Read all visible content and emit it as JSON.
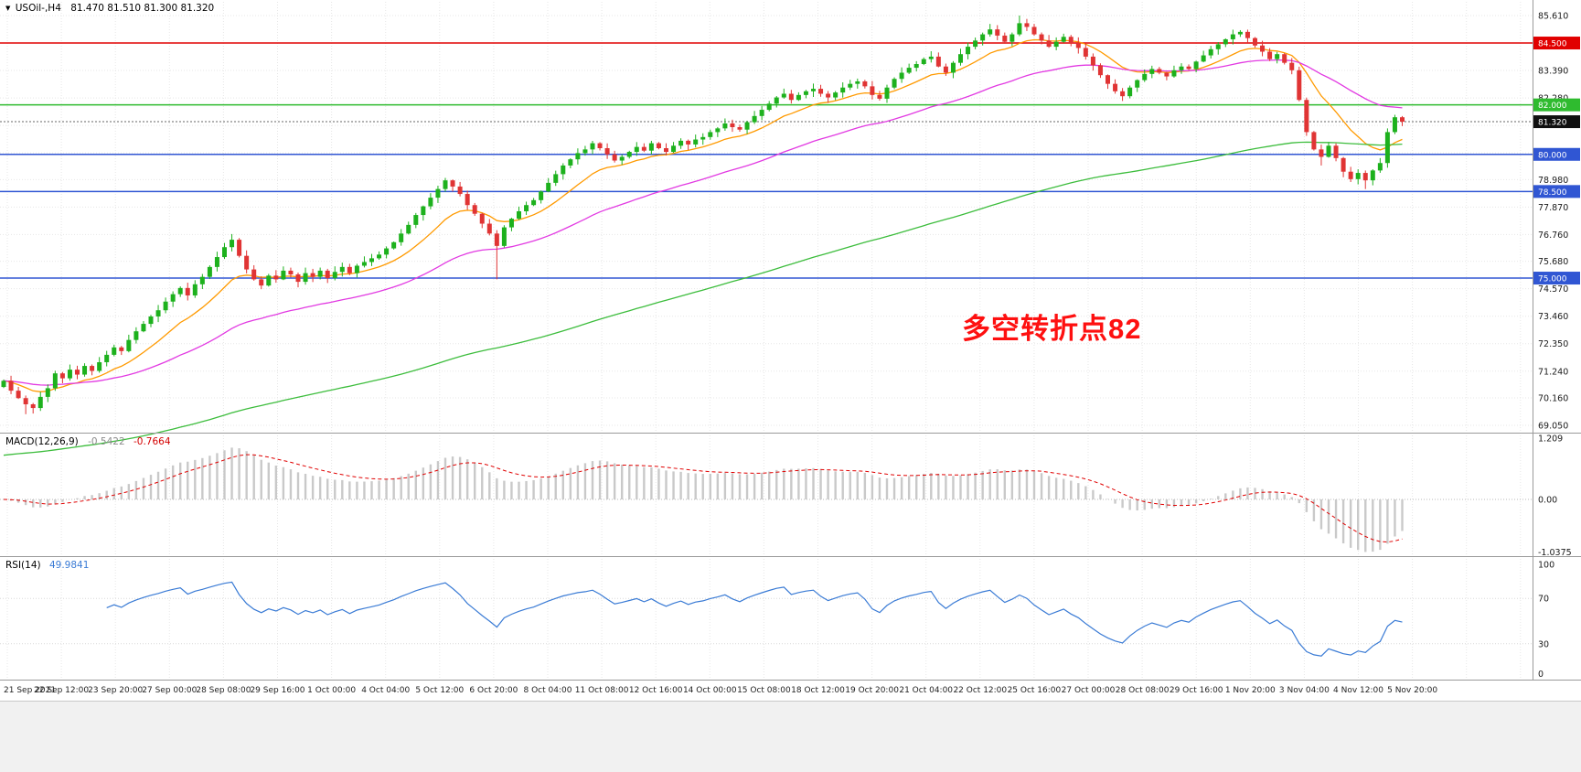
{
  "chart_data": {
    "type": "candlestick",
    "title": "USOil-,H4",
    "timeframe": "H4",
    "symbol": "USOil",
    "ohlc": {
      "open": "81.470",
      "high": "81.510",
      "low": "81.300",
      "close": "81.320"
    },
    "ohlc_string": "81.470 81.510 81.300 81.320",
    "x_labels": [
      "21 Sep 2021",
      "22 Sep 12:00",
      "23 Sep 20:00",
      "27 Sep 00:00",
      "28 Sep 08:00",
      "29 Sep 16:00",
      "1 Oct 00:00",
      "4 Oct 04:00",
      "5 Oct 12:00",
      "6 Oct 20:00",
      "8 Oct 04:00",
      "11 Oct 08:00",
      "12 Oct 16:00",
      "14 Oct 00:00",
      "15 Oct 08:00",
      "18 Oct 12:00",
      "19 Oct 20:00",
      "21 Oct 04:00",
      "22 Oct 12:00",
      "25 Oct 16:00",
      "27 Oct 00:00",
      "28 Oct 08:00",
      "29 Oct 16:00",
      "1 Nov 20:00",
      "3 Nov 04:00",
      "4 Nov 12:00",
      "5 Nov 20:00"
    ],
    "y_axis": {
      "min": 69.05,
      "max": 85.61,
      "tick_labels": [
        {
          "v": 85.61,
          "t": "85.610"
        },
        {
          "v": 83.39,
          "t": "83.390"
        },
        {
          "v": 82.28,
          "t": "82.280"
        },
        {
          "v": 78.98,
          "t": "78.980"
        },
        {
          "v": 77.87,
          "t": "77.870"
        },
        {
          "v": 76.76,
          "t": "76.760"
        },
        {
          "v": 75.68,
          "t": "75.680"
        },
        {
          "v": 74.57,
          "t": "74.570"
        },
        {
          "v": 73.46,
          "t": "73.460"
        },
        {
          "v": 72.35,
          "t": "72.350"
        },
        {
          "v": 71.24,
          "t": "71.240"
        },
        {
          "v": 70.16,
          "t": "70.160"
        },
        {
          "v": 69.05,
          "t": "69.050"
        }
      ],
      "grid_extra": [
        84.5,
        81.17,
        80.06
      ]
    },
    "first_open": 70.6,
    "closes": [
      70.85,
      70.45,
      70.15,
      69.9,
      69.75,
      70.2,
      70.55,
      71.15,
      70.95,
      71.3,
      71.1,
      71.45,
      71.25,
      71.6,
      71.9,
      72.2,
      72.05,
      72.5,
      72.85,
      73.15,
      73.45,
      73.7,
      74.05,
      74.35,
      74.6,
      74.3,
      74.75,
      75.05,
      75.45,
      75.85,
      76.25,
      76.55,
      75.9,
      75.35,
      74.95,
      74.7,
      75.1,
      74.95,
      75.3,
      75.15,
      74.85,
      75.2,
      75.05,
      75.3,
      75.0,
      75.25,
      75.45,
      75.2,
      75.5,
      75.65,
      75.8,
      75.95,
      76.2,
      76.45,
      76.8,
      77.15,
      77.55,
      77.9,
      78.25,
      78.6,
      78.95,
      78.7,
      78.4,
      77.95,
      77.6,
      77.2,
      76.8,
      76.3,
      77.05,
      77.4,
      77.7,
      77.95,
      78.15,
      78.5,
      78.85,
      79.2,
      79.55,
      79.8,
      80.05,
      80.2,
      80.45,
      80.25,
      80.0,
      79.75,
      79.9,
      80.1,
      80.3,
      80.15,
      80.45,
      80.25,
      80.1,
      80.35,
      80.55,
      80.4,
      80.6,
      80.7,
      80.9,
      81.05,
      81.25,
      81.1,
      81.0,
      81.3,
      81.55,
      81.8,
      82.05,
      82.3,
      82.45,
      82.2,
      82.4,
      82.55,
      82.65,
      82.45,
      82.3,
      82.5,
      82.7,
      82.85,
      82.95,
      82.75,
      82.4,
      82.25,
      82.7,
      83.05,
      83.3,
      83.5,
      83.65,
      83.85,
      83.95,
      83.55,
      83.3,
      83.7,
      84.05,
      84.35,
      84.6,
      84.85,
      85.05,
      84.8,
      84.55,
      84.85,
      85.3,
      85.15,
      84.85,
      84.6,
      84.35,
      84.55,
      84.75,
      84.5,
      84.3,
      83.95,
      83.6,
      83.2,
      82.85,
      82.55,
      82.35,
      82.7,
      83.0,
      83.25,
      83.45,
      83.3,
      83.15,
      83.4,
      83.55,
      83.45,
      83.75,
      84.0,
      84.25,
      84.45,
      84.65,
      84.85,
      84.95,
      84.7,
      84.4,
      84.15,
      83.85,
      84.05,
      83.7,
      83.4,
      82.2,
      80.9,
      80.2,
      79.9,
      80.35,
      79.85,
      79.3,
      79.0,
      79.25,
      78.95,
      79.35,
      79.65,
      80.9,
      81.5,
      81.32
    ],
    "wick_overrides": {
      "high": {
        "31": 76.78,
        "60": 79.05,
        "138": 85.61,
        "168": 85.02
      },
      "low": {
        "3": 69.5,
        "67": 74.95,
        "179": 79.55,
        "185": 78.6
      }
    },
    "horizontal_levels": [
      {
        "value": 84.5,
        "label": "84.500",
        "color": "#e10000"
      },
      {
        "value": 82.0,
        "label": "82.000",
        "color": "#2fbb2f"
      },
      {
        "value": 80.0,
        "label": "80.000",
        "color": "#3056d3"
      },
      {
        "value": 78.5,
        "label": "78.500",
        "color": "#3056d3"
      },
      {
        "value": 75.0,
        "label": "75.000",
        "color": "#3056d3"
      }
    ],
    "current_price": {
      "value": 81.32,
      "label": "81.320",
      "color": "#101010"
    },
    "moving_averages": [
      {
        "name": "fast-ma",
        "period": 12,
        "color": "#ff9a00",
        "seed": null
      },
      {
        "name": "mid-ma",
        "period": 40,
        "color": "#e23ae2",
        "seed": null
      },
      {
        "name": "slow-ma",
        "period": 150,
        "color": "#3dbd3d",
        "seed": 67.8
      }
    ],
    "annotation": {
      "text": "多空转折点82",
      "color": "#fe1010"
    },
    "indicators": [
      {
        "name": "MACD",
        "label": "MACD(12,26,9)",
        "value_main": "-0.5422",
        "value_signal": "-0.7664",
        "axis": [
          {
            "v": 1.209,
            "t": "1.209"
          },
          {
            "v": 0,
            "t": "0.00"
          },
          {
            "v": -1.0375,
            "t": "-1.0375"
          }
        ],
        "histogram_color": "#c9c9c9",
        "signal_color": "#e00000"
      },
      {
        "name": "RSI",
        "label": "RSI(14)",
        "value": "49.9841",
        "axis": [
          {
            "v": 100,
            "t": "100"
          },
          {
            "v": 70,
            "t": "70"
          },
          {
            "v": 30,
            "t": "30"
          },
          {
            "v": 0,
            "t": "0"
          }
        ],
        "levels": [
          70,
          30
        ],
        "line_color": "#3a7bd5"
      }
    ],
    "colors": {
      "up": "#1db11d",
      "down": "#e03434",
      "background": "#ffffff",
      "grid": "#e7e7e7",
      "axis_text": "#1a1a1a",
      "separator": "#9a9a9a"
    }
  }
}
